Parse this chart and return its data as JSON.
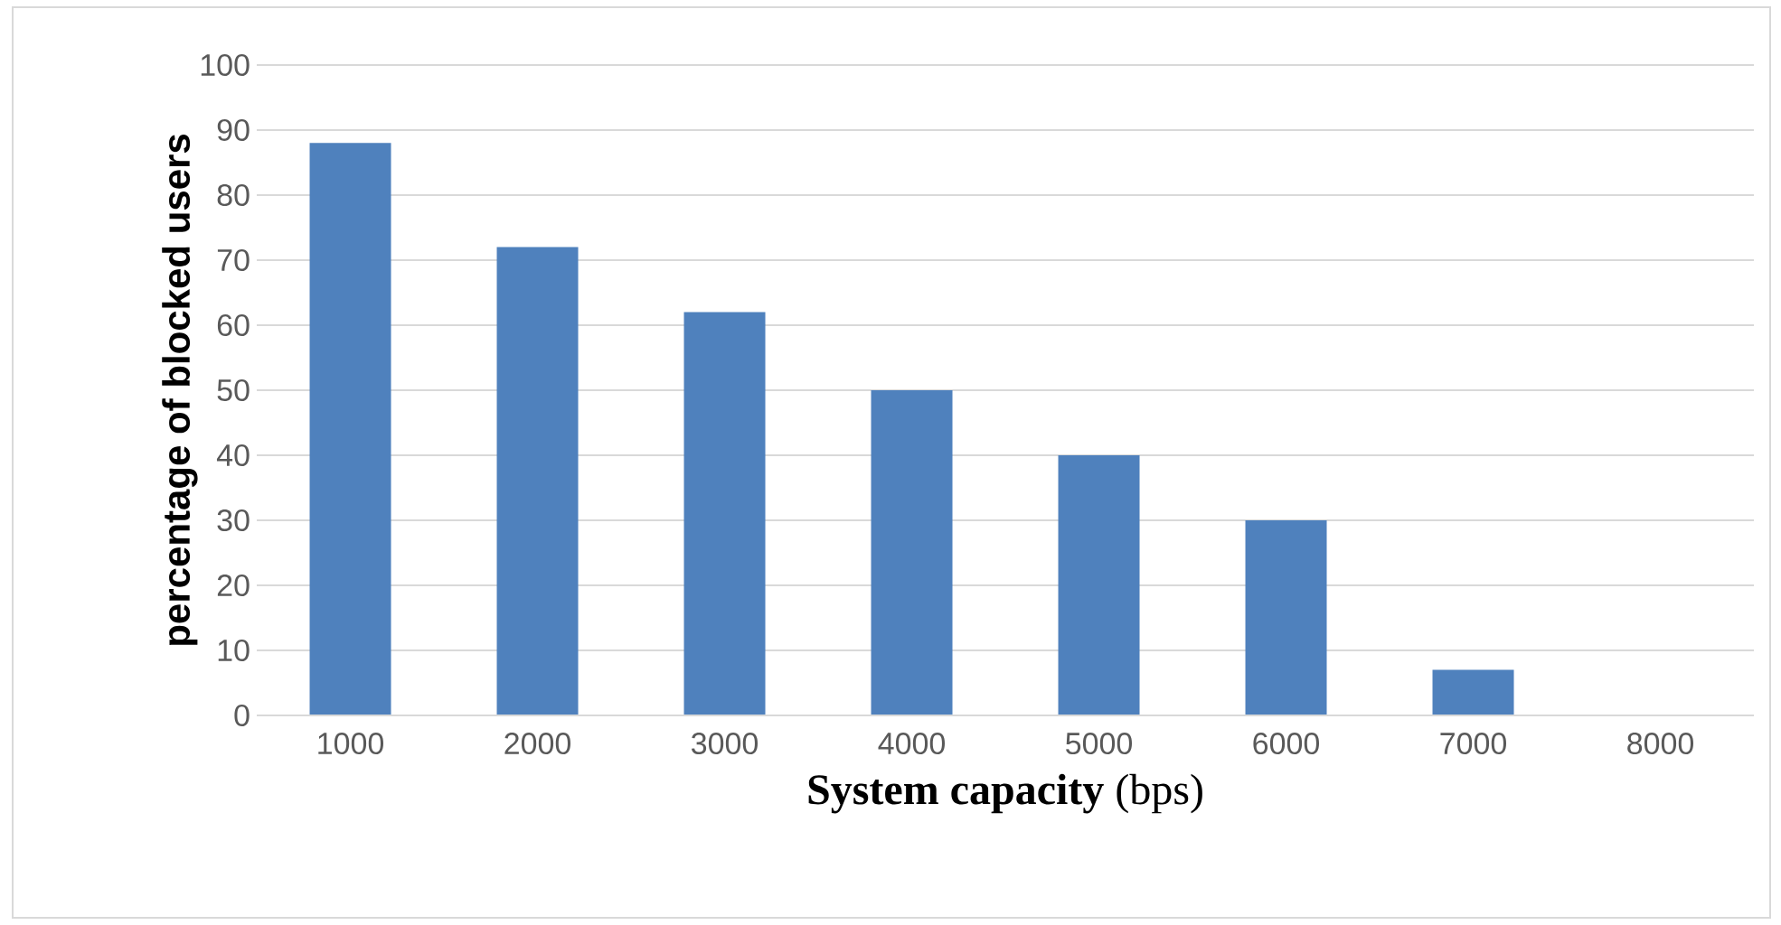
{
  "chart_data": {
    "type": "bar",
    "xlabel": "**System capacity** (bps)",
    "ylabel": "percentage of blocked users",
    "categories": [
      "1000",
      "2000",
      "3000",
      "4000",
      "5000",
      "6000",
      "7000",
      "8000"
    ],
    "values": [
      88,
      72,
      62,
      50,
      40,
      30,
      7,
      0
    ],
    "color": "#4f81bd",
    "ylim": [
      0,
      100
    ],
    "yticks": [
      0,
      10,
      20,
      30,
      40,
      50,
      60,
      70,
      80,
      90,
      100
    ],
    "grid": "y"
  }
}
